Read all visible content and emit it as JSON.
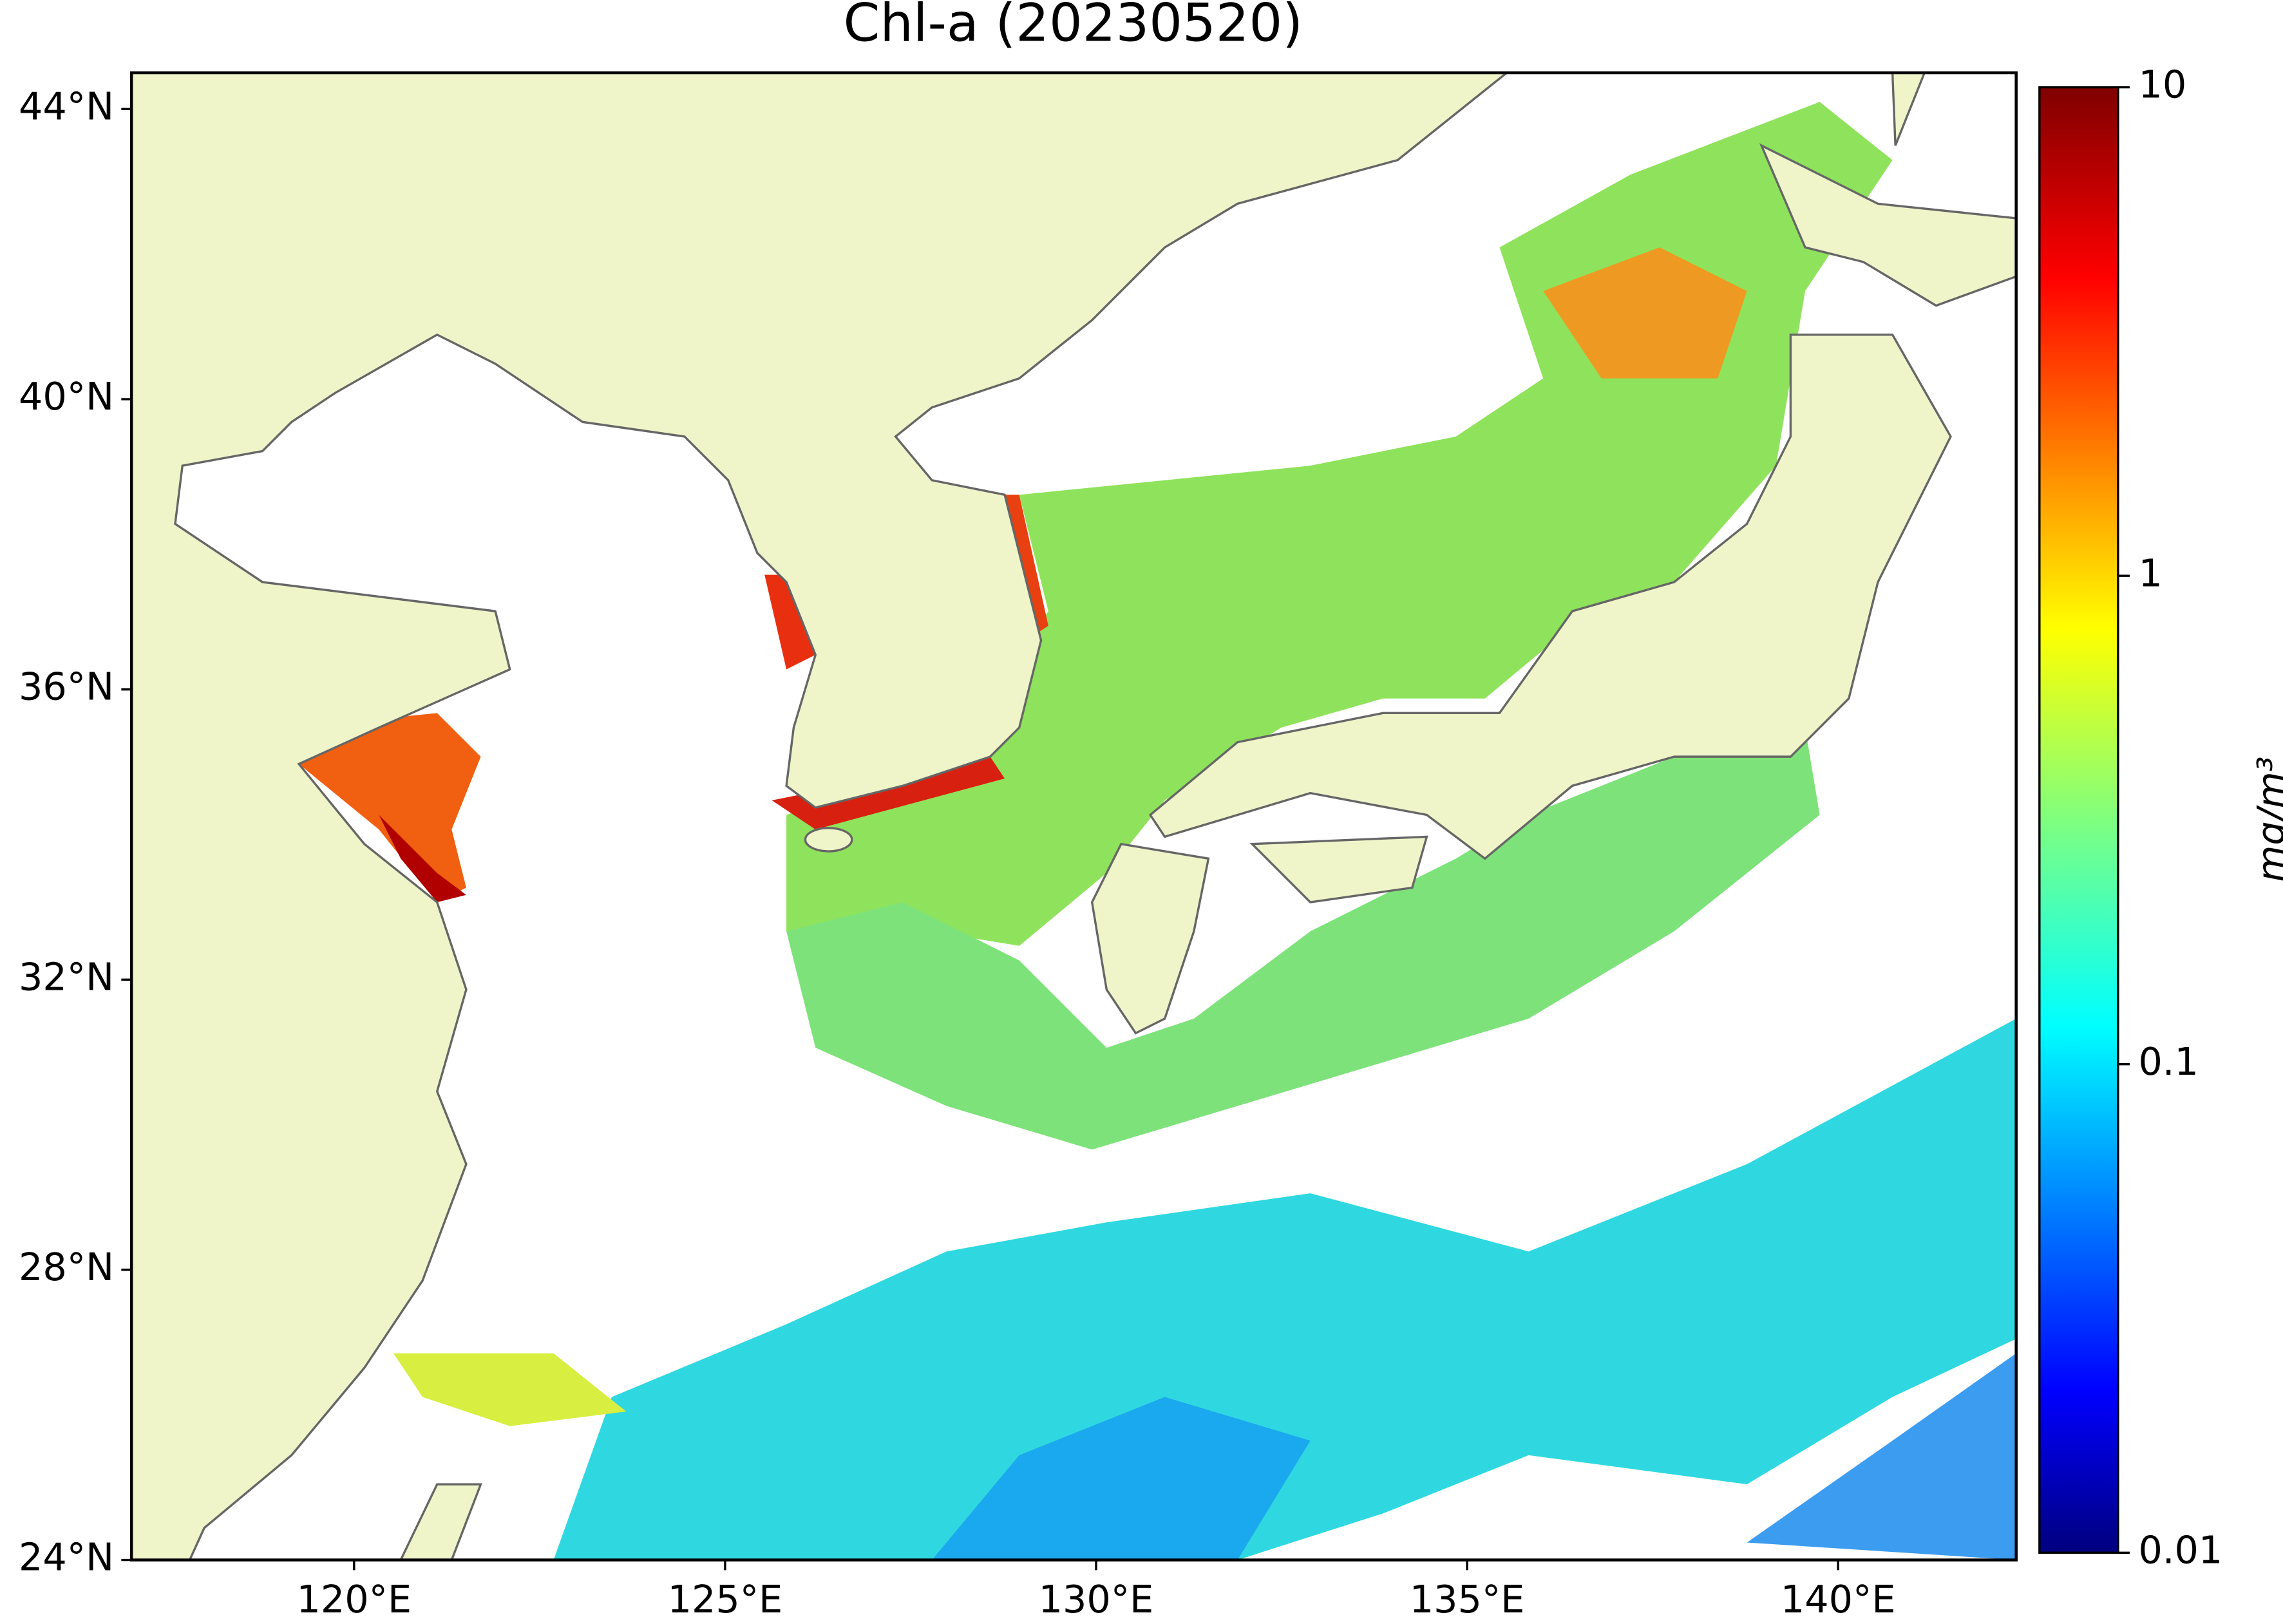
{
  "title": "Chl-a (20230520)",
  "map": {
    "type": "map",
    "xlim": [
      117,
      142.4
    ],
    "ylim": [
      24,
      44.5
    ],
    "xticks": [
      {
        "value": 120,
        "label": "120°E"
      },
      {
        "value": 125,
        "label": "125°E"
      },
      {
        "value": 130,
        "label": "130°E"
      },
      {
        "value": 135,
        "label": "135°E"
      },
      {
        "value": 140,
        "label": "140°E"
      }
    ],
    "yticks": [
      {
        "value": 24,
        "label": "24°N"
      },
      {
        "value": 28,
        "label": "28°N"
      },
      {
        "value": 32,
        "label": "32°N"
      },
      {
        "value": 36,
        "label": "36°N"
      },
      {
        "value": 40,
        "label": "40°N"
      },
      {
        "value": 44,
        "label": "44°N"
      }
    ]
  },
  "colorbar": {
    "label": "mg/m³",
    "scale": "log",
    "colormap": "jet",
    "lim": [
      0.01,
      10
    ],
    "ticks": [
      0.01,
      0.1,
      1,
      10
    ]
  }
}
